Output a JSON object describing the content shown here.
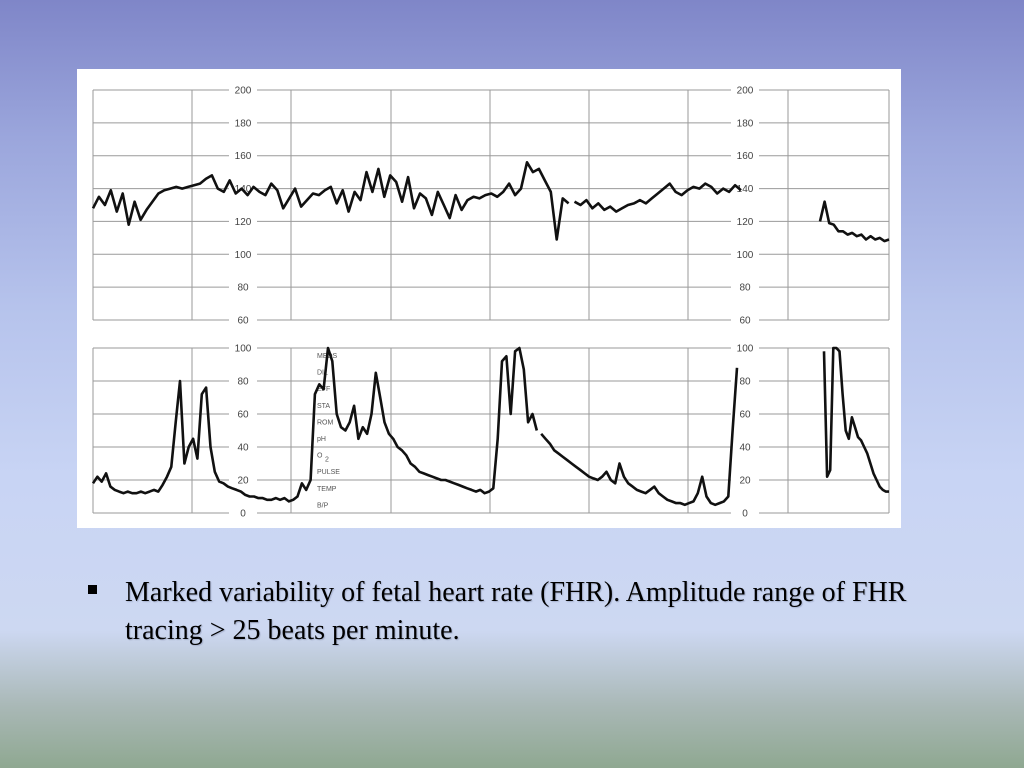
{
  "chart_data": [
    {
      "type": "line",
      "title": "",
      "xlabel": "",
      "ylabel": "",
      "ylim": [
        60,
        200
      ],
      "y_ticks": [
        "200",
        "180",
        "160",
        "140",
        "120",
        "100",
        "80",
        "60"
      ],
      "grid": true,
      "series": [
        {
          "segment": 1,
          "x": [
            0,
            1,
            2,
            3,
            4,
            5,
            6,
            7,
            8,
            9,
            10,
            11,
            12,
            13,
            14,
            15,
            16,
            17,
            18,
            19,
            20,
            21,
            22,
            23,
            24,
            25,
            26,
            27,
            28,
            29,
            30,
            31,
            32,
            33,
            34,
            35,
            36,
            37,
            38,
            39,
            40,
            41,
            42,
            43,
            44,
            45,
            46,
            47,
            48,
            49,
            50,
            51,
            52,
            53,
            54,
            55,
            56,
            57,
            58,
            59,
            60,
            61,
            62,
            63,
            64,
            65,
            66,
            67,
            68,
            69,
            70,
            71,
            72,
            73,
            74,
            75,
            76,
            77,
            78,
            79,
            80
          ],
          "y": [
            128,
            135,
            130,
            139,
            126,
            137,
            118,
            132,
            121,
            127,
            132,
            137,
            139,
            140,
            141,
            140,
            141,
            142,
            143,
            146,
            148,
            140,
            138,
            145,
            137,
            140,
            136,
            141,
            138,
            136,
            143,
            139,
            128,
            134,
            140,
            129,
            133,
            137,
            136,
            139,
            141,
            131,
            139,
            126,
            138,
            133,
            150,
            138,
            152,
            135,
            148,
            144,
            132,
            147,
            128,
            137,
            134,
            124,
            138,
            130,
            122,
            136,
            127,
            133,
            135,
            134,
            136,
            137,
            135,
            138,
            143,
            136,
            140,
            156,
            150,
            152,
            145,
            138,
            109,
            134,
            131
          ]
        },
        {
          "segment": 2,
          "x": [
            81,
            82,
            83,
            84,
            85,
            86,
            87,
            88,
            89,
            90,
            91,
            92,
            93,
            94,
            95,
            96,
            97,
            98,
            99,
            100,
            101,
            102,
            103,
            104,
            105,
            106,
            107,
            108,
            109
          ],
          "y": [
            132,
            130,
            133,
            128,
            131,
            127,
            129,
            126,
            128,
            130,
            131,
            133,
            131,
            134,
            137,
            140,
            143,
            138,
            136,
            139,
            141,
            140,
            143,
            141,
            137,
            140,
            138,
            142,
            139
          ]
        },
        {
          "segment": 3,
          "x": [
            110,
            111,
            112,
            113,
            114,
            115,
            116,
            117,
            118,
            119,
            120,
            121,
            122,
            123,
            124,
            125
          ],
          "y": [
            120,
            132,
            119,
            118,
            114,
            114,
            112,
            113,
            111,
            112,
            109,
            111,
            109,
            110,
            108,
            109
          ]
        }
      ]
    },
    {
      "type": "line",
      "title": "",
      "xlabel": "",
      "ylabel": "",
      "ylim": [
        0,
        100
      ],
      "y_ticks": [
        "100",
        "80",
        "60",
        "40",
        "20",
        "0"
      ],
      "grid": true,
      "side_labels": [
        "MEDS",
        "DIL",
        "EFF",
        "STA",
        "ROM",
        "pH",
        "O",
        "PULSE",
        "TEMP",
        "B/P"
      ],
      "side_labels_sub": {
        "O": "2"
      },
      "series": [
        {
          "segment": 1,
          "x": [
            0,
            1,
            2,
            3,
            4,
            5,
            6,
            7,
            8,
            9,
            10,
            11,
            12,
            13,
            14,
            15,
            16,
            17,
            18,
            19,
            20,
            21,
            22,
            23,
            24,
            25,
            26,
            27,
            28,
            29,
            30,
            31,
            32,
            33,
            34,
            35,
            36,
            37,
            38,
            39,
            40,
            41,
            42,
            43,
            44,
            45,
            46,
            47,
            48,
            49,
            50,
            51,
            52,
            53,
            54,
            55,
            56,
            57,
            58,
            59,
            60,
            61,
            62,
            63,
            64,
            65,
            66,
            67,
            68,
            69,
            70,
            71,
            72,
            73,
            74,
            75,
            76,
            77,
            78,
            79,
            80,
            81,
            82,
            83,
            84,
            85,
            86,
            87,
            88,
            89,
            90,
            91,
            92,
            93,
            94,
            95,
            96,
            97,
            98,
            99,
            100,
            101,
            102
          ],
          "y": [
            18,
            22,
            19,
            24,
            16,
            14,
            13,
            12,
            13,
            12,
            12,
            13,
            12,
            13,
            14,
            13,
            17,
            22,
            28,
            55,
            80,
            30,
            40,
            45,
            33,
            72,
            76,
            40,
            25,
            19,
            18,
            16,
            15,
            14,
            13,
            11,
            10,
            10,
            9,
            9,
            8,
            8,
            9,
            8,
            9,
            7,
            8,
            10,
            18,
            14,
            20,
            72,
            78,
            75,
            100,
            92,
            60,
            52,
            50,
            55,
            65,
            45,
            52,
            48,
            60,
            85,
            70,
            55,
            48,
            45,
            40,
            38,
            35,
            30,
            28,
            25,
            24,
            23,
            22,
            21,
            20,
            20,
            19,
            18,
            17,
            16,
            15,
            14,
            13,
            14,
            12,
            13,
            15,
            45,
            92,
            95,
            60,
            98,
            100,
            87,
            55,
            60,
            50
          ]
        },
        {
          "segment": 2,
          "x": [
            103,
            104,
            105,
            106,
            107,
            108,
            109,
            110,
            111,
            112,
            113,
            114,
            115,
            116,
            117,
            118,
            119,
            120,
            121,
            122,
            123,
            124,
            125,
            126,
            127,
            128,
            129,
            130,
            131,
            132,
            133,
            134,
            135,
            136,
            137,
            138,
            139,
            140,
            141,
            142,
            143,
            144,
            145,
            146,
            147,
            148
          ],
          "y": [
            48,
            45,
            42,
            38,
            36,
            34,
            32,
            30,
            28,
            26,
            24,
            22,
            21,
            20,
            22,
            25,
            20,
            18,
            30,
            22,
            18,
            16,
            14,
            13,
            12,
            14,
            16,
            12,
            10,
            8,
            7,
            6,
            6,
            5,
            6,
            7,
            12,
            22,
            10,
            6,
            5,
            6,
            7,
            10,
            50,
            88
          ]
        },
        {
          "segment": 3,
          "x": [
            149,
            150,
            151,
            152,
            153,
            154,
            155,
            156,
            157,
            158,
            159,
            160,
            161,
            162,
            163,
            164,
            165,
            166,
            167,
            168,
            169,
            170
          ],
          "y": [
            98,
            22,
            26,
            100,
            100,
            98,
            72,
            50,
            45,
            58,
            52,
            46,
            44,
            40,
            36,
            30,
            24,
            20,
            16,
            14,
            13,
            13
          ]
        }
      ]
    }
  ],
  "caption": {
    "bullet": "▪",
    "text": "Marked variability of fetal heart rate (FHR). Amplitude range of FHR tracing > 25 beats per minute."
  }
}
